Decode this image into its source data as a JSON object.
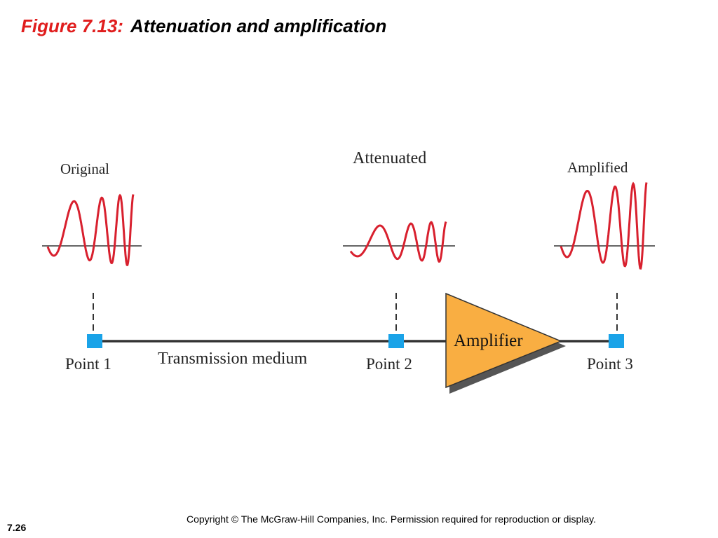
{
  "figure": {
    "prefix": "Figure 7.13:",
    "title": "Attenuation and amplification"
  },
  "signals": {
    "original_label": "Original",
    "attenuated_label": "Attenuated",
    "amplified_label": "Amplified"
  },
  "points": {
    "point1": "Point 1",
    "point2": "Point 2",
    "point3": "Point 3"
  },
  "medium_label": "Transmission medium",
  "amplifier_label": "Amplifier",
  "colors": {
    "title_prefix": "#e01d1d",
    "wave": "#d8202e",
    "point_marker": "#1aa3e8",
    "amplifier_fill": "#f9ae42",
    "amplifier_shadow": "#555555"
  },
  "footer": {
    "copyright": "Copyright © The McGraw-Hill Companies, Inc. Permission required for reproduction or display.",
    "slide_number": "7.26"
  }
}
